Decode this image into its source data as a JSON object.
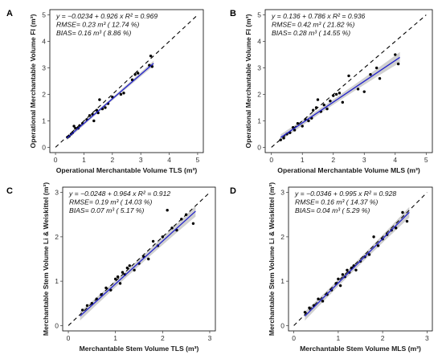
{
  "colors": {
    "regression": "#2222cc",
    "confidence_band": "#c8c8c8",
    "identity_line": "#000000",
    "points": "#000000"
  },
  "chart_data": [
    {
      "type": "scatter",
      "panel_label": "A",
      "xlabel": "Operational Merchantable Volume TLS (m³)",
      "ylabel": "Operational Merchantable Volume FI (m³)",
      "xlim": [
        0,
        5
      ],
      "ylim": [
        0,
        5
      ],
      "xticks": [
        0,
        1,
        2,
        3,
        4,
        5
      ],
      "yticks": [
        0,
        1,
        2,
        3,
        4,
        5
      ],
      "annotation_lines": [
        "y = −0.0234 + 0.926 x   R² = 0.969",
        "RMSE= 0.23 m³ ( 12.74 %)",
        "BIAS= 0.16 m³ ( 8.86 %)"
      ],
      "regression": {
        "intercept": -0.0234,
        "slope": 0.926,
        "x_range": [
          0.4,
          3.45
        ],
        "ci_halfwidth": [
          0.08,
          0.03,
          0.1
        ]
      },
      "identity_line": true,
      "x": [
        0.42,
        0.48,
        0.55,
        0.6,
        0.65,
        0.7,
        0.8,
        0.85,
        0.95,
        1.1,
        1.2,
        1.3,
        1.35,
        1.45,
        1.5,
        1.55,
        1.65,
        1.75,
        1.85,
        2.0,
        2.3,
        2.4,
        2.7,
        2.8,
        2.9,
        3.3,
        3.35,
        3.4
      ],
      "y": [
        0.38,
        0.42,
        0.5,
        0.55,
        0.8,
        0.72,
        0.72,
        0.82,
        0.9,
        1.05,
        1.2,
        1.25,
        1.0,
        1.4,
        1.3,
        1.8,
        1.45,
        1.5,
        1.65,
        1.9,
        2.0,
        2.05,
        2.55,
        2.75,
        2.8,
        3.1,
        3.45,
        3.05
      ]
    },
    {
      "type": "scatter",
      "panel_label": "B",
      "xlabel": "Operational Merchantable Volume MLS (m³)",
      "ylabel": "Operational Merchantable Volume FI (m³)",
      "xlim": [
        0,
        5
      ],
      "ylim": [
        0,
        5
      ],
      "xticks": [
        0,
        1,
        2,
        3,
        4,
        5
      ],
      "yticks": [
        0,
        1,
        2,
        3,
        4,
        5
      ],
      "annotation_lines": [
        "y = 0.136 + 0.786 x   R² = 0.936",
        "RMSE= 0.42 m³ ( 21.82 %)",
        "BIAS= 0.28 m³ ( 14.55 %)"
      ],
      "regression": {
        "intercept": 0.136,
        "slope": 0.786,
        "x_range": [
          0.3,
          4.15
        ],
        "ci_halfwidth": [
          0.12,
          0.05,
          0.2
        ]
      },
      "identity_line": true,
      "x": [
        0.3,
        0.4,
        0.5,
        0.6,
        0.7,
        0.75,
        0.85,
        1.0,
        1.1,
        1.2,
        1.3,
        1.35,
        1.45,
        1.5,
        1.6,
        1.7,
        1.8,
        1.9,
        2.0,
        2.1,
        2.2,
        2.3,
        2.5,
        2.8,
        3.0,
        3.2,
        3.4,
        3.5,
        4.0,
        4.1
      ],
      "y": [
        0.28,
        0.35,
        0.5,
        0.55,
        0.75,
        0.65,
        0.9,
        0.8,
        1.05,
        1.0,
        1.1,
        1.4,
        1.5,
        1.8,
        1.35,
        1.6,
        1.45,
        1.75,
        1.95,
        2.0,
        2.05,
        1.7,
        2.7,
        2.2,
        2.1,
        2.75,
        3.0,
        2.6,
        3.5,
        3.15
      ]
    },
    {
      "type": "scatter",
      "panel_label": "C",
      "xlabel": "Merchantable Stem Volume TLS (m³)",
      "ylabel": "Merchantable Stem Volume Li & Weiskittel (m³)",
      "xlim": [
        0,
        3
      ],
      "ylim": [
        0,
        3
      ],
      "xticks": [
        0,
        1,
        2,
        3
      ],
      "yticks": [
        0,
        1,
        2,
        3
      ],
      "annotation_lines": [
        "y = −0.0248 + 0.964 x   R² = 0.912",
        "RMSE= 0.19 m³ ( 14.03 %)",
        "BIAS= 0.07 m³ ( 5.17 %)"
      ],
      "regression": {
        "intercept": -0.0248,
        "slope": 0.964,
        "x_range": [
          0.25,
          2.7
        ],
        "ci_halfwidth": [
          0.1,
          0.04,
          0.12
        ]
      },
      "identity_line": true,
      "x": [
        0.3,
        0.4,
        0.5,
        0.6,
        0.7,
        0.8,
        0.9,
        1.0,
        1.05,
        1.1,
        1.15,
        1.2,
        1.25,
        1.3,
        1.4,
        1.5,
        1.6,
        1.7,
        1.8,
        1.9,
        2.0,
        2.1,
        2.2,
        2.3,
        2.4,
        2.5,
        2.65
      ],
      "y": [
        0.35,
        0.45,
        0.5,
        0.6,
        0.7,
        0.85,
        0.8,
        1.05,
        1.1,
        0.95,
        1.2,
        1.15,
        1.3,
        1.35,
        1.25,
        1.4,
        1.55,
        1.5,
        1.9,
        1.8,
        2.0,
        2.6,
        2.2,
        2.15,
        2.4,
        2.5,
        2.3
      ]
    },
    {
      "type": "scatter",
      "panel_label": "D",
      "xlabel": "Merchantable Stem Volume MLS (m³)",
      "ylabel": "Merchantable Stem Volume Li & Weiskittel (m³)",
      "xlim": [
        0,
        3
      ],
      "ylim": [
        0,
        3
      ],
      "xticks": [
        0,
        1,
        2,
        3
      ],
      "yticks": [
        0,
        1,
        2,
        3
      ],
      "annotation_lines": [
        "y = −0.0346 + 0.995 x   R² = 0.928",
        "RMSE= 0.16 m³ ( 14.37 %)",
        "BIAS= 0.04 m³ ( 5.29 %)"
      ],
      "regression": {
        "intercept": -0.0346,
        "slope": 0.995,
        "x_range": [
          0.25,
          2.6
        ],
        "ci_halfwidth": [
          0.1,
          0.04,
          0.12
        ]
      },
      "identity_line": true,
      "x": [
        0.25,
        0.35,
        0.45,
        0.55,
        0.65,
        0.75,
        0.85,
        0.95,
        1.0,
        1.05,
        1.1,
        1.15,
        1.2,
        1.25,
        1.3,
        1.35,
        1.4,
        1.5,
        1.6,
        1.7,
        1.8,
        1.9,
        2.0,
        2.1,
        2.2,
        2.3,
        2.45,
        2.55
      ],
      "y": [
        0.3,
        0.4,
        0.45,
        0.6,
        0.55,
        0.7,
        0.8,
        0.95,
        1.05,
        0.9,
        1.15,
        1.1,
        1.25,
        1.2,
        1.3,
        1.35,
        1.25,
        1.45,
        1.55,
        1.6,
        2.0,
        1.8,
        1.95,
        2.05,
        2.15,
        2.2,
        2.55,
        2.35
      ]
    }
  ]
}
